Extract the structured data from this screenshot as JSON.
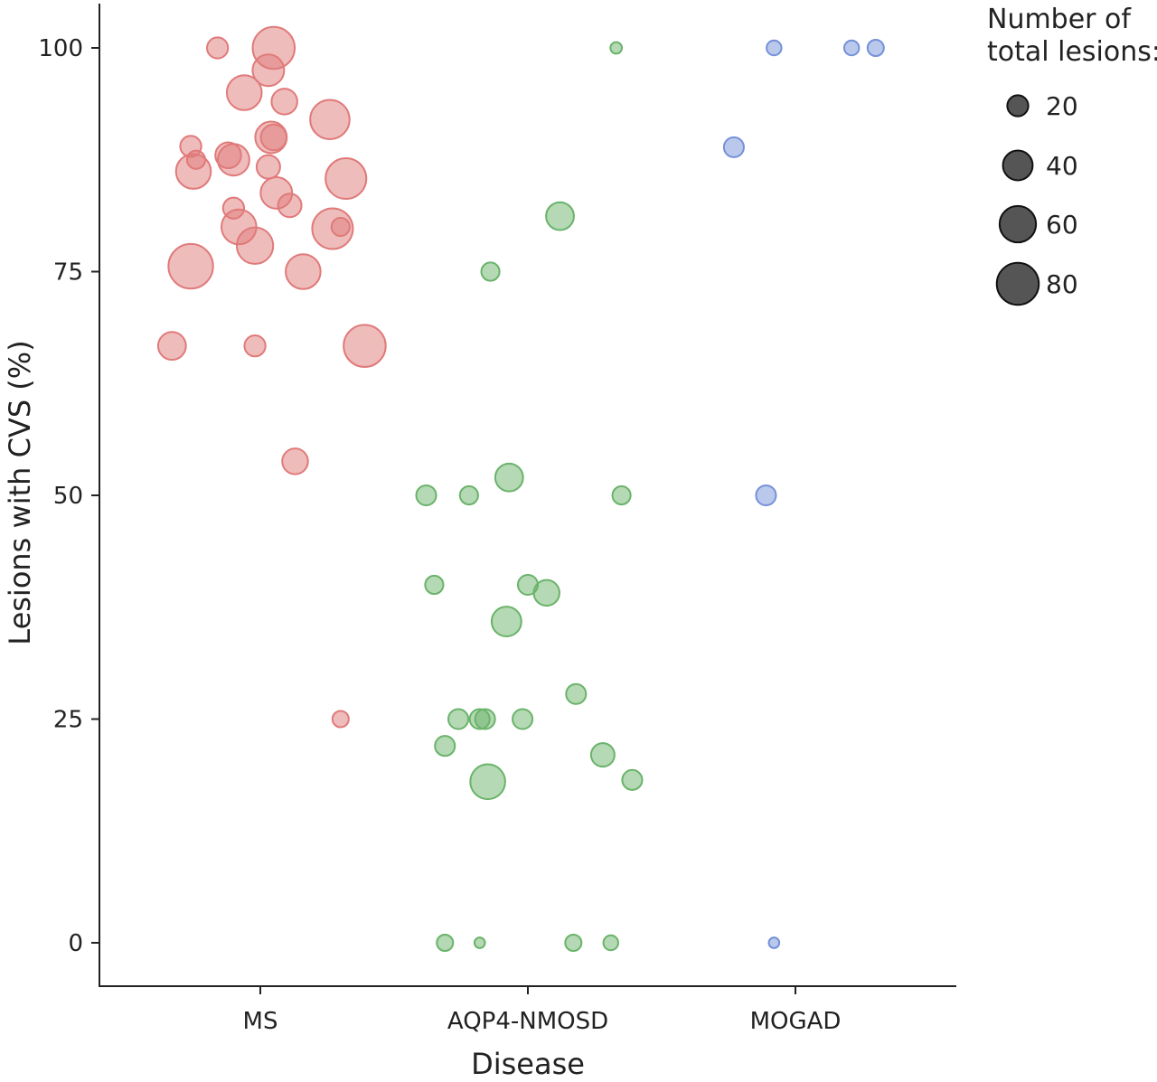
{
  "chart_data": {
    "type": "scatter",
    "title": "",
    "xlabel": "Disease",
    "ylabel": "Lesions with CVS (%)",
    "categories": [
      "MS",
      "AQP4-NMOSD",
      "MOGAD"
    ],
    "ylim": [
      -5,
      105
    ],
    "yticks": [
      0,
      25,
      50,
      75,
      100
    ],
    "grid": false,
    "legend": {
      "title_lines": [
        "Number of",
        "total lesions:"
      ],
      "placement": "top-right",
      "entries": [
        {
          "label": "20",
          "size_value": 20
        },
        {
          "label": "40",
          "size_value": 40
        },
        {
          "label": "60",
          "size_value": 60
        },
        {
          "label": "80",
          "size_value": 80
        }
      ]
    },
    "series": [
      {
        "category": "MS",
        "color": "#e07a7a",
        "points": [
          {
            "jitter": -0.16,
            "y": 100,
            "size": 20
          },
          {
            "jitter": 0.05,
            "y": 100,
            "size": 80
          },
          {
            "jitter": 0.03,
            "y": 97.5,
            "size": 45
          },
          {
            "jitter": -0.06,
            "y": 95,
            "size": 55
          },
          {
            "jitter": 0.09,
            "y": 94,
            "size": 30
          },
          {
            "jitter": 0.26,
            "y": 92,
            "size": 70
          },
          {
            "jitter": 0.04,
            "y": 90,
            "size": 45
          },
          {
            "jitter": 0.05,
            "y": 90,
            "size": 30
          },
          {
            "jitter": -0.26,
            "y": 89,
            "size": 20
          },
          {
            "jitter": -0.12,
            "y": 88,
            "size": 30
          },
          {
            "jitter": -0.1,
            "y": 87.5,
            "size": 45
          },
          {
            "jitter": -0.24,
            "y": 87.5,
            "size": 15
          },
          {
            "jitter": 0.03,
            "y": 86.7,
            "size": 25
          },
          {
            "jitter": -0.25,
            "y": 86.2,
            "size": 55
          },
          {
            "jitter": 0.32,
            "y": 85.4,
            "size": 75
          },
          {
            "jitter": 0.06,
            "y": 83.8,
            "size": 45
          },
          {
            "jitter": 0.11,
            "y": 82.4,
            "size": 25
          },
          {
            "jitter": -0.1,
            "y": 82.1,
            "size": 20
          },
          {
            "jitter": -0.08,
            "y": 80,
            "size": 55
          },
          {
            "jitter": 0.27,
            "y": 79.8,
            "size": 75
          },
          {
            "jitter": 0.3,
            "y": 80,
            "size": 15
          },
          {
            "jitter": -0.02,
            "y": 77.9,
            "size": 60
          },
          {
            "jitter": -0.26,
            "y": 75.6,
            "size": 90
          },
          {
            "jitter": 0.16,
            "y": 75,
            "size": 55
          },
          {
            "jitter": -0.33,
            "y": 66.7,
            "size": 35
          },
          {
            "jitter": -0.02,
            "y": 66.7,
            "size": 20
          },
          {
            "jitter": 0.39,
            "y": 66.7,
            "size": 80
          },
          {
            "jitter": 0.13,
            "y": 53.8,
            "size": 30
          },
          {
            "jitter": 0.3,
            "y": 25,
            "size": 12
          }
        ]
      },
      {
        "category": "AQP4-NMOSD",
        "color": "#6ab36a",
        "points": [
          {
            "jitter": 0.33,
            "y": 100,
            "size": 6
          },
          {
            "jitter": 0.12,
            "y": 81.2,
            "size": 35
          },
          {
            "jitter": -0.14,
            "y": 75,
            "size": 15
          },
          {
            "jitter": -0.38,
            "y": 50,
            "size": 18
          },
          {
            "jitter": -0.22,
            "y": 50,
            "size": 15
          },
          {
            "jitter": -0.07,
            "y": 52,
            "size": 35
          },
          {
            "jitter": 0.35,
            "y": 50,
            "size": 15
          },
          {
            "jitter": -0.35,
            "y": 40,
            "size": 15
          },
          {
            "jitter": 0.0,
            "y": 40,
            "size": 18
          },
          {
            "jitter": 0.07,
            "y": 39.1,
            "size": 30
          },
          {
            "jitter": -0.08,
            "y": 35.9,
            "size": 40
          },
          {
            "jitter": 0.18,
            "y": 27.8,
            "size": 18
          },
          {
            "jitter": -0.26,
            "y": 25,
            "size": 18
          },
          {
            "jitter": -0.18,
            "y": 25,
            "size": 18
          },
          {
            "jitter": -0.16,
            "y": 25,
            "size": 18
          },
          {
            "jitter": -0.02,
            "y": 25,
            "size": 18
          },
          {
            "jitter": -0.31,
            "y": 22,
            "size": 18
          },
          {
            "jitter": 0.28,
            "y": 21,
            "size": 25
          },
          {
            "jitter": -0.15,
            "y": 18,
            "size": 55
          },
          {
            "jitter": 0.39,
            "y": 18.2,
            "size": 18
          },
          {
            "jitter": -0.31,
            "y": 0,
            "size": 12
          },
          {
            "jitter": -0.18,
            "y": 0,
            "size": 5
          },
          {
            "jitter": 0.17,
            "y": 0,
            "size": 12
          },
          {
            "jitter": 0.31,
            "y": 0,
            "size": 10
          }
        ]
      },
      {
        "category": "MOGAD",
        "color": "#7591d8",
        "points": [
          {
            "jitter": -0.08,
            "y": 100,
            "size": 10
          },
          {
            "jitter": 0.21,
            "y": 100,
            "size": 10
          },
          {
            "jitter": 0.3,
            "y": 100,
            "size": 12
          },
          {
            "jitter": -0.23,
            "y": 88.9,
            "size": 18
          },
          {
            "jitter": -0.11,
            "y": 50,
            "size": 18
          },
          {
            "jitter": -0.08,
            "y": 0,
            "size": 5
          }
        ]
      }
    ]
  }
}
